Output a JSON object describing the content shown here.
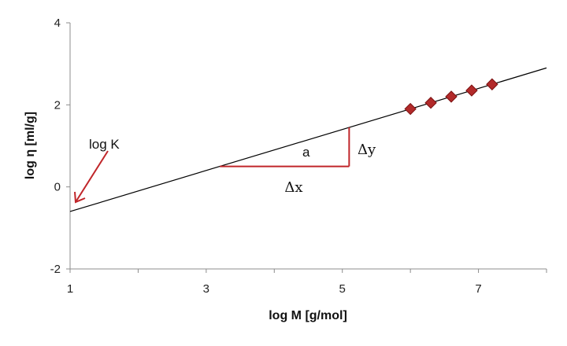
{
  "chart_data": {
    "type": "scatter",
    "title": "",
    "xlabel": "log M [g/mol]",
    "ylabel": "log η [ml/g]",
    "xlim": [
      1,
      8
    ],
    "ylim": [
      -2,
      4
    ],
    "xticks": [
      "1",
      "3",
      "5",
      "7"
    ],
    "yticks": [
      "-2",
      "0",
      "2",
      "4"
    ],
    "grid": false,
    "legend": "none",
    "series": [
      {
        "points": [
          {
            "x": 6.0,
            "y": 1.9
          },
          {
            "x": 6.3,
            "y": 2.05
          },
          {
            "x": 6.6,
            "y": 2.2
          },
          {
            "x": 6.9,
            "y": 2.35
          },
          {
            "x": 7.2,
            "y": 2.5
          }
        ]
      }
    ],
    "fit_line": {
      "intercept": -1.1,
      "slope": 0.5,
      "x_range": [
        1,
        8
      ]
    },
    "slope_triangle": {
      "x1": 3.2,
      "x2": 5.1
    },
    "annotations": {
      "log_k": "log K",
      "slope": "a",
      "delta_x": "Δx",
      "delta_y": "Δy"
    },
    "colors": {
      "marker": "#b22a2a",
      "marker_edge": "#7a1010",
      "triangle": "#c0262a",
      "fit_line": "#000000",
      "axis": "#8c8c8c"
    }
  }
}
